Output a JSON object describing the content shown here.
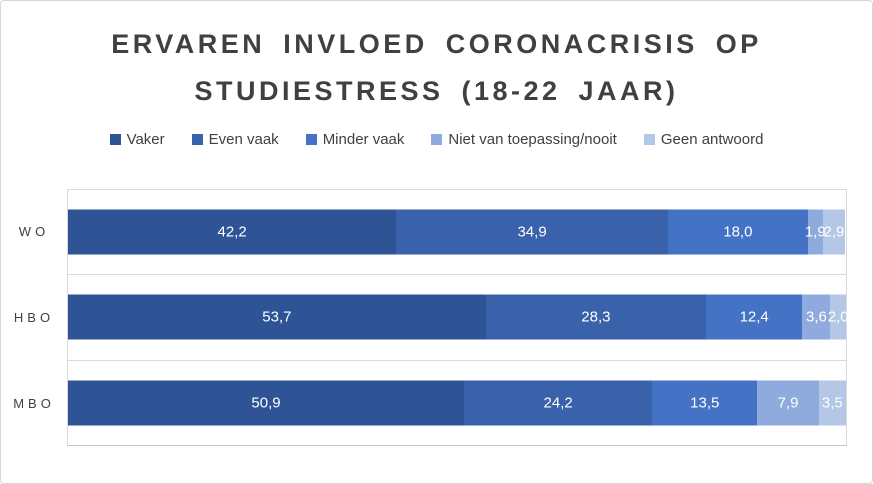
{
  "chart_data": {
    "type": "bar",
    "orientation": "horizontal-stacked",
    "title": "ERVAREN INVLOED CORONACRISIS OP STUDIESTRESS (18-22 JAAR)",
    "categories": [
      "WO",
      "HBO",
      "MBO"
    ],
    "series": [
      {
        "name": "Vaker",
        "color": "#2F5496",
        "values": [
          42.2,
          53.7,
          50.9
        ]
      },
      {
        "name": "Even vaak",
        "color": "#3A62AB",
        "values": [
          34.9,
          28.3,
          24.2
        ]
      },
      {
        "name": "Minder vaak",
        "color": "#4472C4",
        "values": [
          18.0,
          12.4,
          13.5
        ]
      },
      {
        "name": "Niet van toepassing/nooit",
        "color": "#8FAADC",
        "values": [
          1.9,
          3.6,
          7.9
        ]
      },
      {
        "name": "Geen antwoord",
        "color": "#B4C7E7",
        "values": [
          2.9,
          2.0,
          3.5
        ]
      }
    ],
    "value_axis": {
      "min": 0,
      "max": 100,
      "unit": "percent"
    },
    "legend_position": "top",
    "gridlines": "category-separators",
    "decimal_separator": ",",
    "data_label_color": "#FFFFFF"
  },
  "colors": {
    "title_text": "#404040",
    "axis_text": "#404040",
    "gridline": "#D9D9D9",
    "chart_border": "#D6D6D6",
    "background": "#FFFFFF"
  }
}
